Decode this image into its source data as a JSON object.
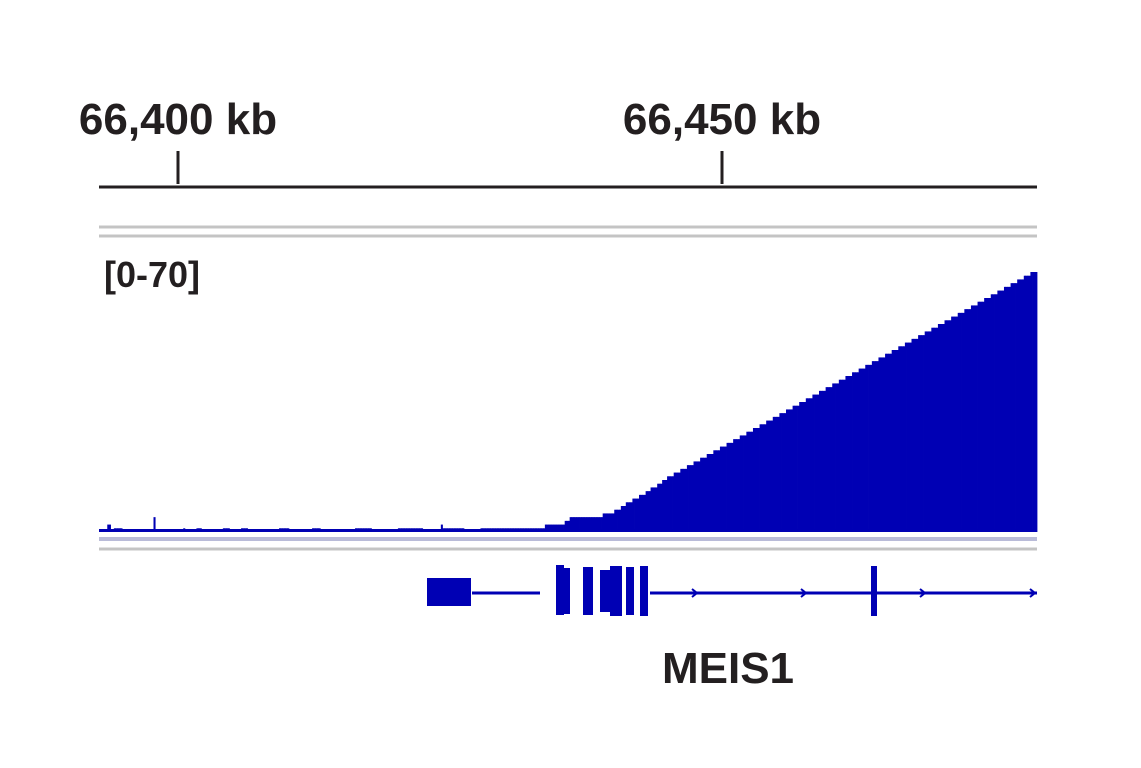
{
  "chart_data": {
    "type": "bar",
    "title": "",
    "xlabel": "",
    "ylabel": "",
    "x_unit": "kb",
    "x_range_kb": [
      66393,
      66479
    ],
    "ylim": [
      0,
      70
    ],
    "data_range_label": "[0-70]",
    "ruler_ticks": [
      {
        "label": "66,400 kb",
        "value_kb": 66400
      },
      {
        "label": "66,450 kb",
        "value_kb": 66450
      }
    ],
    "series": [
      {
        "color": "#0000b4",
        "values": [
          0,
          0,
          0,
          0,
          0,
          2,
          2,
          0,
          0,
          1,
          1,
          1,
          1,
          1,
          0,
          0,
          0,
          0,
          0,
          0,
          0,
          0,
          0,
          0,
          0,
          0,
          0,
          0,
          0,
          0,
          0,
          0,
          0,
          4,
          0,
          0,
          0,
          0,
          0,
          0,
          0,
          0,
          0,
          0,
          0,
          0,
          0,
          0,
          0,
          0,
          0,
          1,
          0,
          0,
          0,
          0,
          0,
          0,
          0,
          1,
          1,
          1,
          0,
          0,
          0,
          0,
          0,
          0,
          0,
          0,
          0,
          0,
          0,
          0,
          0,
          1,
          1,
          1,
          1,
          0,
          0,
          0,
          0,
          0,
          0,
          0,
          1,
          1,
          1,
          1,
          0,
          0,
          0,
          0,
          0,
          0,
          0,
          0,
          0,
          0,
          0,
          0,
          0,
          0,
          0,
          0,
          0,
          0,
          0,
          1,
          1,
          1,
          1,
          1,
          1,
          0,
          0,
          0,
          0,
          0,
          0,
          0,
          0,
          0,
          0,
          0,
          0,
          0,
          0,
          1,
          1,
          1,
          1,
          1,
          0,
          0,
          0,
          0,
          0,
          0,
          0,
          0,
          0,
          0,
          0,
          0,
          0,
          0,
          0,
          0,
          0,
          0,
          0,
          0,
          0,
          1,
          1,
          1,
          1,
          1,
          1,
          1,
          1,
          1,
          1,
          0,
          0,
          0,
          0,
          0,
          0,
          0,
          0,
          0,
          0,
          0,
          0,
          0,
          0,
          0,
          0,
          1,
          1,
          1,
          1,
          1,
          1,
          1,
          1,
          1,
          1,
          1,
          1,
          1,
          1,
          1,
          0,
          0,
          0,
          0,
          0,
          0,
          0,
          0,
          0,
          0,
          0,
          2,
          1,
          1,
          1,
          1,
          1,
          1,
          1,
          1,
          1,
          1,
          1,
          1,
          1,
          0,
          0,
          0,
          0,
          0,
          0,
          0,
          0,
          0,
          0,
          1,
          1,
          1,
          1,
          1,
          1,
          1,
          1,
          1,
          1,
          1,
          1,
          1,
          1,
          1,
          1,
          1,
          1,
          1,
          1,
          1,
          1,
          1,
          1,
          1,
          1,
          1,
          1,
          1,
          1,
          1,
          1,
          1,
          1,
          1,
          1,
          1,
          1,
          1,
          2,
          2,
          2,
          2,
          2,
          2,
          2,
          2,
          2,
          2,
          2,
          2,
          3,
          3,
          3,
          4,
          4,
          4,
          4,
          4,
          4,
          4,
          4,
          4,
          4,
          4,
          4,
          4,
          4,
          4,
          4,
          4,
          4,
          4,
          4,
          5,
          5,
          5,
          5,
          5,
          5,
          5,
          6,
          6,
          6,
          6,
          7,
          7,
          7,
          8,
          8,
          8,
          8,
          9,
          9,
          9,
          9,
          10,
          10,
          10,
          10,
          11,
          11,
          11,
          12,
          12,
          12,
          12,
          13,
          13,
          13,
          14,
          14,
          14,
          15,
          15,
          15,
          15,
          16,
          16,
          16,
          16,
          17,
          17,
          17,
          17,
          18,
          18,
          18,
          18,
          19,
          19,
          19,
          19,
          20,
          20,
          20,
          20,
          21,
          21,
          21,
          21,
          22,
          22,
          22,
          22,
          23,
          23,
          23,
          23,
          24,
          24,
          24,
          24,
          25,
          25,
          25,
          25,
          26,
          26,
          26,
          26,
          27,
          27,
          27,
          27,
          28,
          28,
          28,
          28,
          29,
          29,
          29,
          29,
          30,
          30,
          30,
          30,
          31,
          31,
          31,
          31,
          32,
          32,
          32,
          32,
          33,
          33,
          33,
          33,
          34,
          34,
          34,
          34,
          35,
          35,
          35,
          35,
          36,
          36,
          36,
          36,
          37,
          37,
          37,
          37,
          38,
          38,
          38,
          38,
          39,
          39,
          39,
          39,
          40,
          40,
          40,
          40,
          41,
          41,
          41,
          41,
          42,
          42,
          42,
          42,
          43,
          43,
          43,
          43,
          44,
          44,
          44,
          44,
          45,
          45,
          45,
          45,
          46,
          46,
          46,
          46,
          47,
          47,
          47,
          47,
          48,
          48,
          48,
          48,
          49,
          49,
          49,
          49,
          50,
          50,
          50,
          50,
          51,
          51,
          51,
          51,
          52,
          52,
          52,
          52,
          53,
          53,
          53,
          53,
          54,
          54,
          54,
          54,
          55,
          55,
          55,
          55,
          56,
          56,
          56,
          56,
          57,
          57,
          57,
          57,
          58,
          58,
          58,
          58,
          59,
          59,
          59,
          59,
          60,
          60,
          60,
          60,
          61,
          61,
          61,
          61,
          62,
          62,
          62,
          62,
          63,
          63,
          63,
          63,
          64,
          64,
          64,
          64,
          65,
          65,
          65,
          65,
          66,
          66,
          66,
          66,
          67,
          67,
          67,
          67,
          68,
          68,
          68,
          68,
          69,
          69,
          69,
          69,
          70,
          70,
          70,
          70
        ]
      }
    ],
    "gene": {
      "name": "MEIS1",
      "strand": "+"
    }
  }
}
